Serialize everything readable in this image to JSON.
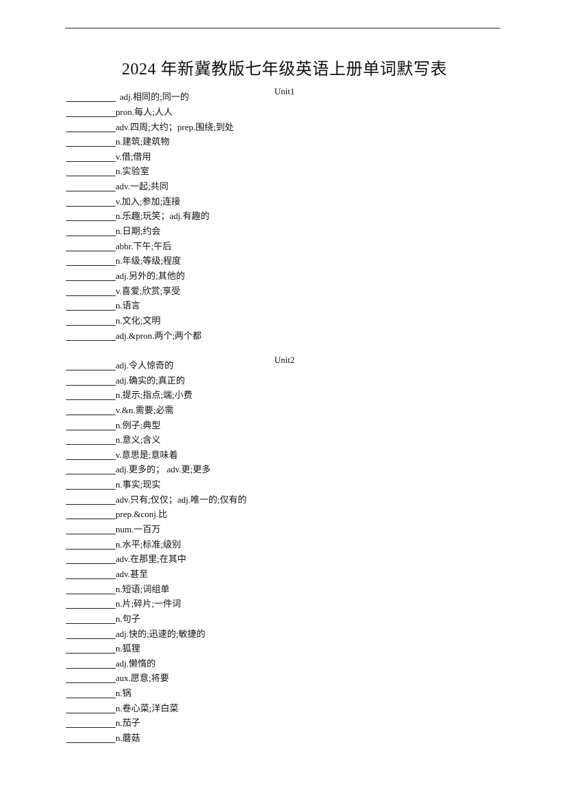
{
  "title": "2024 年新冀教版七年级英语上册单词默写表",
  "units": [
    {
      "label": "Unit1",
      "items": [
        "adj.相同的;同一的",
        "pron.每人;人人",
        "adv.四周;大约；prep.围绕;到处",
        "n.建筑;建筑物",
        "v.借;借用",
        "n.实验室",
        "adv.一起;共同",
        "v.加入;参加;连接",
        "n.乐趣;玩笑；adj.有趣的",
        "n.日期;约会",
        "abbr.下午;午后",
        "n.年级;等级;程度",
        "adj.另外的;其他的",
        "v.喜爱;欣赏;享受",
        "n.语言",
        "n.文化;文明",
        "adj.&pron.两个;两个都"
      ]
    },
    {
      "label": "Unit2",
      "items": [
        "adj.令人惊奇的",
        "adj.确实的;真正的",
        "n.提示;指点;端;小费",
        "v.&n.需要;必需",
        "n.例子;典型",
        "n.意义;含义",
        "v.意思是;意味着",
        "adj.更多的； adv.更;更多",
        "n.事实;现实",
        "adv.只有;仅仅；adj.唯一的;仅有的",
        "prep.&conj.比",
        "num.一百万",
        "n.水平;标准;级别",
        "adv.在那里;在其中",
        "adv.甚至",
        "n.短语;词组单",
        "n.片;碎片;一件词",
        "n.句子",
        "adj.快的;迅速的;敏捷的",
        "n.狐狸",
        "adj.懒惰的",
        "aux.愿意;将要",
        "n.锅",
        "n.卷心菜;洋白菜",
        "n.茄子",
        "n.蘑菇"
      ]
    }
  ]
}
